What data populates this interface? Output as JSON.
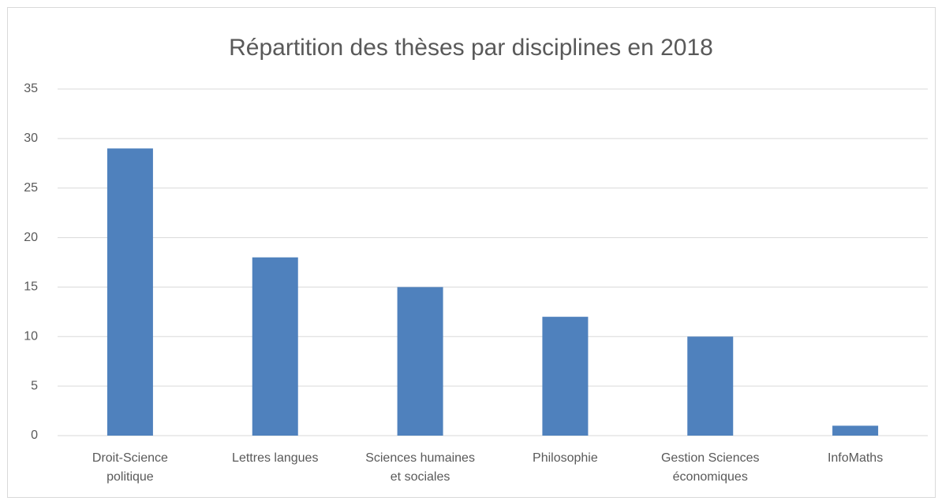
{
  "chart_data": {
    "type": "bar",
    "title": "Répartition des thèses par disciplines en 2018",
    "categories": [
      "Droit-Science politique",
      "Lettres langues",
      "Sciences humaines et sociales",
      "Philosophie",
      "Gestion Sciences économiques",
      "InfoMaths"
    ],
    "values": [
      29,
      18,
      15,
      12,
      10,
      1
    ],
    "color": "#4f81bd",
    "ylim": [
      0,
      35
    ],
    "yticks": [
      0,
      5,
      10,
      15,
      20,
      25,
      30,
      35
    ],
    "grid": true
  }
}
